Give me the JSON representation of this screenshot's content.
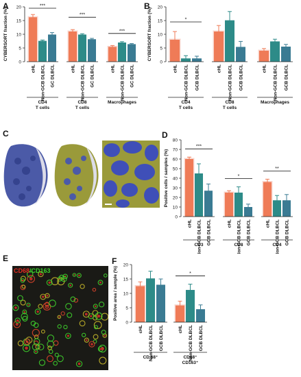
{
  "panel_labels": {
    "a": "A",
    "b": "B",
    "c": "C",
    "d": "D",
    "e": "E",
    "f": "F"
  },
  "colors": {
    "chl": "#ef7b57",
    "non_gcb": "#2d8b88",
    "gcb": "#3a7b93",
    "chl_hl": "#f3b2a3",
    "sig_line": "#111111"
  },
  "micrograph": {
    "tissue": "#4b5aa7",
    "stain": "#9a9a3a",
    "nuclei": "#3f4fb8",
    "scale_bar": "#ffffff"
  },
  "fluorescence": {
    "label_cd68": "CD68",
    "label_slash": "/",
    "label_cd163": "CD163",
    "cd68_color": "#e02a20",
    "cd163_color": "#38d02a",
    "background": "#1a1a16"
  },
  "chart_data": [
    {
      "id": "A",
      "type": "bar",
      "ylabel": "CYBERSORT fraction (%)",
      "ylim": [
        0,
        20
      ],
      "yticks": [
        0,
        5,
        10,
        15,
        20
      ],
      "bar_labels": [
        "cHL",
        "Non-GCB DLBCL",
        "GC DLBCL"
      ],
      "groups": [
        {
          "label": [
            "CD4",
            "T cells"
          ],
          "values": [
            16.2,
            7.6,
            9.9
          ],
          "errors": [
            1.0,
            0.3,
            0.7
          ],
          "sig": "***"
        },
        {
          "label": [
            "CD8",
            "T cells"
          ],
          "values": [
            11.0,
            9.9,
            8.2
          ],
          "errors": [
            0.7,
            0.3,
            0.3
          ],
          "sig": "***"
        },
        {
          "label": [
            "Macrophages"
          ],
          "values": [
            5.4,
            7.0,
            6.4
          ],
          "errors": [
            0.5,
            0.3,
            0.2
          ],
          "sig": "***"
        }
      ]
    },
    {
      "id": "B",
      "type": "bar",
      "ylabel": "CYBERSORT fraction (%)",
      "ylim": [
        0,
        20
      ],
      "yticks": [
        0,
        5,
        10,
        15,
        20
      ],
      "bar_labels": [
        "cHL",
        "Non-GCB DLBCL",
        "GCB DLBCL"
      ],
      "groups": [
        {
          "label": [
            "CD4",
            "T cells"
          ],
          "values": [
            8.0,
            1.2,
            1.2
          ],
          "errors": [
            3.0,
            1.0,
            0.8
          ],
          "sig": "*"
        },
        {
          "label": [
            "CD8",
            "T cells"
          ],
          "values": [
            11.0,
            15.1,
            5.4
          ],
          "errors": [
            2.2,
            3.2,
            2.0
          ],
          "sig": ""
        },
        {
          "label": [
            "Macrophages"
          ],
          "values": [
            4.0,
            7.4,
            5.5
          ],
          "errors": [
            0.8,
            0.8,
            0.8
          ],
          "sig": ""
        }
      ]
    },
    {
      "id": "D",
      "type": "bar",
      "ylabel": "Positive cells / samples (%)",
      "ylim": [
        0,
        80
      ],
      "yticks": [
        0,
        10,
        20,
        30,
        40,
        50,
        60,
        70,
        80
      ],
      "bar_labels": [
        "cHL",
        "Non-GCB DLBCL",
        "GCB DLBCL"
      ],
      "groups": [
        {
          "label": [
            "CD3"
          ],
          "values": [
            60,
            45,
            27
          ],
          "errors": [
            2,
            10,
            7
          ],
          "sig": "***"
        },
        {
          "label": [
            "CD8"
          ],
          "values": [
            25,
            25,
            10
          ],
          "errors": [
            2,
            6,
            3
          ],
          "sig": "*"
        },
        {
          "label": [
            "CD4"
          ],
          "values": [
            36,
            17,
            17
          ],
          "errors": [
            3,
            5,
            6
          ],
          "sig": "**"
        }
      ]
    },
    {
      "id": "F",
      "type": "bar",
      "ylabel": "Positive area / sample (%)",
      "ylim": [
        0,
        20
      ],
      "yticks": [
        0,
        5,
        10,
        15,
        20
      ],
      "bar_labels": [
        "cHL",
        "Non-GCB DLBCL",
        "GCB DLBCL"
      ],
      "groups": [
        {
          "label": [
            "CD 68⁺"
          ],
          "values": [
            12.5,
            15.2,
            13.0
          ],
          "errors": [
            1.5,
            2.5,
            2.0
          ],
          "sig": ""
        },
        {
          "label": [
            "CD68⁺",
            "CD163⁺"
          ],
          "values": [
            5.8,
            11.2,
            4.5
          ],
          "errors": [
            1.5,
            2.0,
            1.5
          ],
          "sig": "*"
        }
      ]
    }
  ]
}
